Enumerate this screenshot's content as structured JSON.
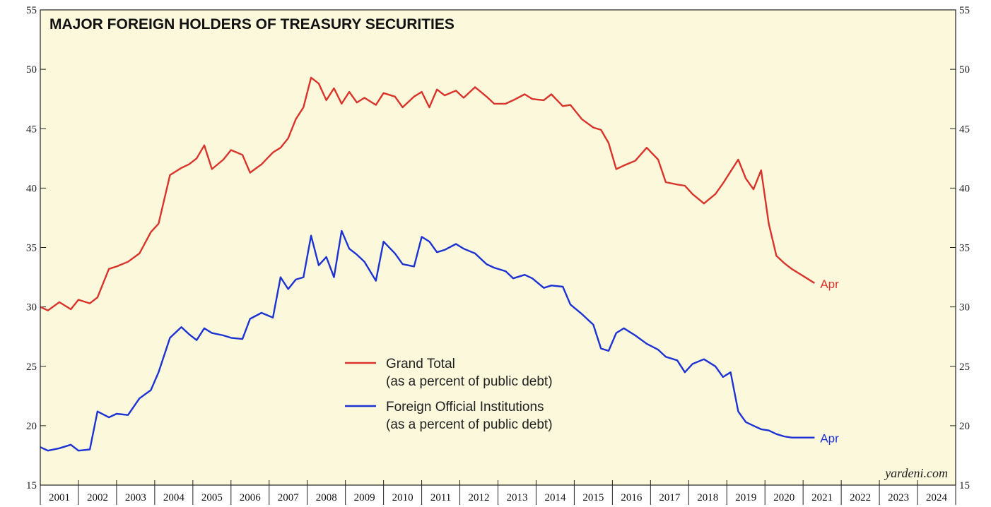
{
  "chart_data": {
    "type": "line",
    "title": "MAJOR FOREIGN HOLDERS OF TREASURY SECURITIES",
    "credit": "yardeni.com",
    "xlabel": "",
    "ylabel": "",
    "xlim": [
      2001,
      2025
    ],
    "ylim": [
      15,
      55
    ],
    "y_ticks": [
      "15",
      "20",
      "25",
      "30",
      "35",
      "40",
      "45",
      "50",
      "55"
    ],
    "x_tick_labels": [
      "2001",
      "2002",
      "2003",
      "2004",
      "2005",
      "2006",
      "2007",
      "2008",
      "2009",
      "2010",
      "2011",
      "2012",
      "2013",
      "2014",
      "2015",
      "2016",
      "2017",
      "2018",
      "2019",
      "2020",
      "2021",
      "2022",
      "2023",
      "2024"
    ],
    "grid": false,
    "legend_position": "center",
    "background": "#fbf8dc",
    "series": [
      {
        "name": "Grand Total",
        "name_note": "(as a percent of public debt)",
        "color": "#d9342b",
        "end_label": "Apr",
        "x": [
          2001.0,
          2001.2,
          2001.5,
          2001.8,
          2002.0,
          2002.3,
          2002.5,
          2002.8,
          2003.0,
          2003.3,
          2003.6,
          2003.9,
          2004.1,
          2004.4,
          2004.7,
          2004.9,
          2005.1,
          2005.3,
          2005.5,
          2005.8,
          2006.0,
          2006.3,
          2006.5,
          2006.8,
          2007.1,
          2007.3,
          2007.5,
          2007.7,
          2007.9,
          2008.1,
          2008.3,
          2008.5,
          2008.7,
          2008.9,
          2009.1,
          2009.3,
          2009.5,
          2009.8,
          2010.0,
          2010.3,
          2010.5,
          2010.8,
          2011.0,
          2011.2,
          2011.4,
          2011.6,
          2011.9,
          2012.1,
          2012.4,
          2012.7,
          2012.9,
          2013.2,
          2013.4,
          2013.7,
          2013.9,
          2014.2,
          2014.4,
          2014.7,
          2014.9,
          2015.2,
          2015.5,
          2015.7,
          2015.9,
          2016.1,
          2016.3,
          2016.6,
          2016.9,
          2017.2,
          2017.4,
          2017.7,
          2017.9,
          2018.1,
          2018.4,
          2018.7,
          2018.9,
          2019.1,
          2019.3,
          2019.5,
          2019.7,
          2019.9,
          2020.1,
          2020.3,
          2020.5,
          2020.7,
          2020.9,
          2021.1,
          2021.3
        ],
        "values": [
          30.0,
          29.7,
          30.4,
          29.8,
          30.6,
          30.3,
          30.8,
          33.2,
          33.4,
          33.8,
          34.5,
          36.3,
          37.0,
          41.1,
          41.7,
          42.0,
          42.5,
          43.6,
          41.6,
          42.4,
          43.2,
          42.8,
          41.3,
          42.0,
          43.0,
          43.4,
          44.2,
          45.8,
          46.8,
          49.3,
          48.8,
          47.4,
          48.4,
          47.1,
          48.1,
          47.2,
          47.6,
          47.0,
          48.0,
          47.7,
          46.8,
          47.7,
          48.1,
          46.8,
          48.3,
          47.8,
          48.2,
          47.6,
          48.5,
          47.7,
          47.1,
          47.1,
          47.4,
          47.9,
          47.5,
          47.4,
          47.9,
          46.9,
          47.0,
          45.8,
          45.1,
          44.9,
          43.8,
          41.6,
          41.9,
          42.3,
          43.4,
          42.4,
          40.5,
          40.3,
          40.2,
          39.5,
          38.7,
          39.5,
          40.4,
          41.4,
          42.4,
          40.8,
          39.9,
          41.5,
          37.0,
          34.3,
          33.7,
          33.2,
          32.8,
          32.4,
          32.0
        ]
      },
      {
        "name": "Foreign Official Institutions",
        "name_note": "(as a percent of public debt)",
        "color": "#1d32d3",
        "end_label": "Apr",
        "x": [
          2001.0,
          2001.2,
          2001.5,
          2001.8,
          2002.0,
          2002.3,
          2002.5,
          2002.8,
          2003.0,
          2003.3,
          2003.6,
          2003.9,
          2004.1,
          2004.4,
          2004.7,
          2004.9,
          2005.1,
          2005.3,
          2005.5,
          2005.8,
          2006.0,
          2006.3,
          2006.5,
          2006.8,
          2007.1,
          2007.3,
          2007.5,
          2007.7,
          2007.9,
          2008.1,
          2008.3,
          2008.5,
          2008.7,
          2008.9,
          2009.1,
          2009.3,
          2009.5,
          2009.8,
          2010.0,
          2010.3,
          2010.5,
          2010.8,
          2011.0,
          2011.2,
          2011.4,
          2011.6,
          2011.9,
          2012.1,
          2012.4,
          2012.7,
          2012.9,
          2013.2,
          2013.4,
          2013.7,
          2013.9,
          2014.2,
          2014.4,
          2014.7,
          2014.9,
          2015.2,
          2015.5,
          2015.7,
          2015.9,
          2016.1,
          2016.3,
          2016.6,
          2016.9,
          2017.2,
          2017.4,
          2017.7,
          2017.9,
          2018.1,
          2018.4,
          2018.7,
          2018.9,
          2019.1,
          2019.3,
          2019.5,
          2019.7,
          2019.9,
          2020.1,
          2020.3,
          2020.5,
          2020.7,
          2020.9,
          2021.1,
          2021.3
        ],
        "values": [
          18.2,
          17.9,
          18.1,
          18.4,
          17.9,
          18.0,
          21.2,
          20.7,
          21.0,
          20.9,
          22.3,
          23.0,
          24.5,
          27.4,
          28.3,
          27.7,
          27.2,
          28.2,
          27.8,
          27.6,
          27.4,
          27.3,
          29.0,
          29.5,
          29.1,
          32.5,
          31.5,
          32.3,
          32.5,
          36.0,
          33.5,
          34.2,
          32.5,
          36.4,
          34.9,
          34.4,
          33.8,
          32.2,
          35.5,
          34.5,
          33.6,
          33.4,
          35.9,
          35.5,
          34.6,
          34.8,
          35.3,
          34.9,
          34.5,
          33.6,
          33.3,
          33.0,
          32.4,
          32.7,
          32.4,
          31.6,
          31.8,
          31.7,
          30.2,
          29.4,
          28.5,
          26.5,
          26.3,
          27.8,
          28.2,
          27.6,
          26.9,
          26.4,
          25.8,
          25.5,
          24.5,
          25.2,
          25.6,
          25.0,
          24.1,
          24.5,
          21.2,
          20.3,
          20.0,
          19.7,
          19.6,
          19.3,
          19.1,
          19.0,
          19.0,
          19.0,
          19.0
        ]
      }
    ]
  }
}
